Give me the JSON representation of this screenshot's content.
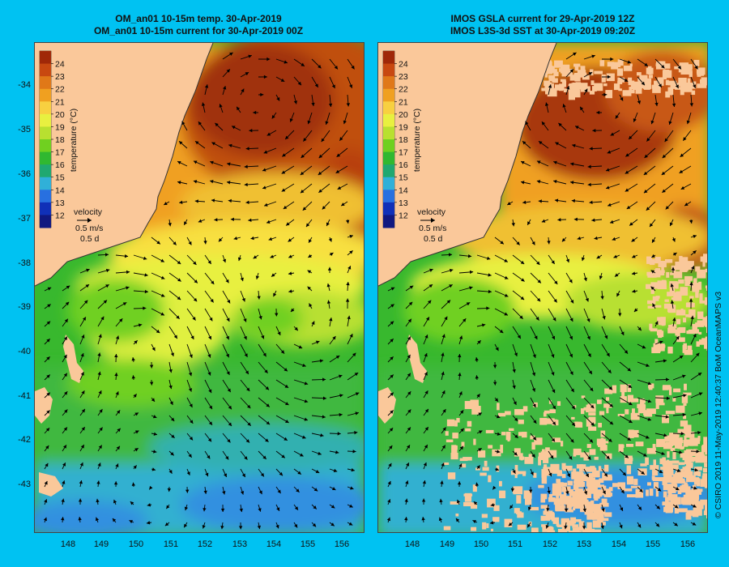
{
  "left_panel": {
    "title_line1": "OM_an01 10-15m temp. 30-Apr-2019",
    "title_line2": "OM_an01 10-15m current for 30-Apr-2019 00Z"
  },
  "right_panel": {
    "title_line1": "IMOS GSLA current for 29-Apr-2019 12Z",
    "title_line2": "IMOS L3S-3d SST at 30-Apr-2019 09:20Z"
  },
  "colorbar": {
    "label": "temperature (°C)",
    "ticks": [
      "24",
      "23",
      "22",
      "21",
      "20",
      "19",
      "18",
      "17",
      "16",
      "15",
      "14",
      "13",
      "12"
    ],
    "colors": [
      "#a02808",
      "#c84810",
      "#e07818",
      "#f0a020",
      "#f8d040",
      "#e8f040",
      "#b8e030",
      "#70d020",
      "#30b830",
      "#20a870",
      "#30b0d8",
      "#2870e0",
      "#1030b8",
      "#101880"
    ]
  },
  "velocity_legend": {
    "title": "velocity",
    "speed": "0.5 m/s",
    "time": "0.5 d"
  },
  "axes": {
    "y_ticks": [
      "-34",
      "-35",
      "-36",
      "-37",
      "-38",
      "-39",
      "-40",
      "-41",
      "-42",
      "-43"
    ],
    "x_ticks": [
      "148",
      "149",
      "150",
      "151",
      "152",
      "153",
      "154",
      "155",
      "156"
    ]
  },
  "credit": "© CSIRO 2019   11-May-2019 12:40:37 BoM OceanMAPS v3"
}
